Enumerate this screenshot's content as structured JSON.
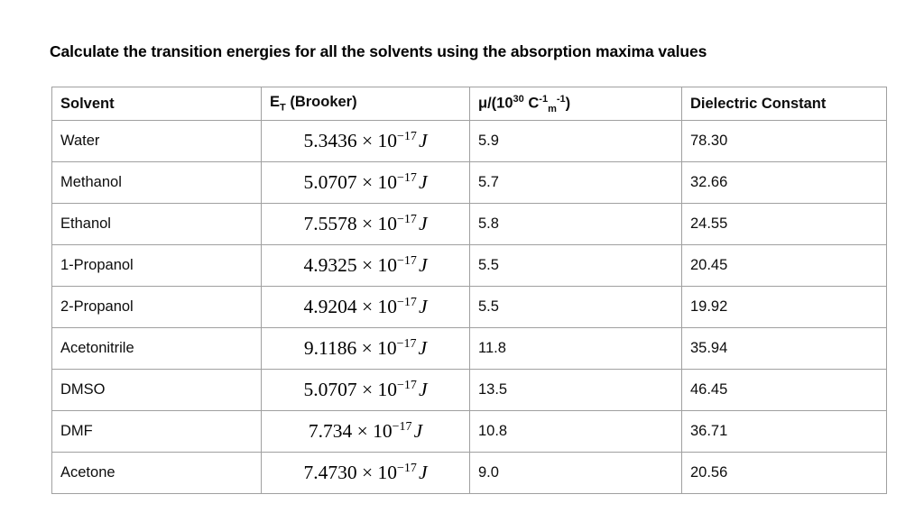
{
  "document": {
    "heading": "Calculate the transition energies for all the solvents using the absorption maxima values"
  },
  "colors": {
    "background": "#ffffff",
    "text": "#000000",
    "table_border": "#a0a0a0"
  },
  "table": {
    "headers": {
      "solvent": "Solvent",
      "et": {
        "base": "E",
        "sub": "T",
        "rest": " (Brooker)"
      },
      "mu": {
        "p1": "μ/(10",
        "sup1": "30",
        "p2": " C",
        "sup2": "-1",
        "sub": "m",
        "sup3": "-1",
        "p3": ")"
      },
      "dielectric": "Dielectric Constant"
    },
    "math": {
      "times_ten": " × 10"
    },
    "rows": [
      {
        "solvent": "Water",
        "et_mantissa": "5.3436",
        "et_exponent": "−17",
        "et_unit": "J",
        "mu": "5.9",
        "dielectric": "78.30"
      },
      {
        "solvent": "Methanol",
        "et_mantissa": "5.0707",
        "et_exponent": "−17",
        "et_unit": "J",
        "mu": "5.7",
        "dielectric": "32.66"
      },
      {
        "solvent": "Ethanol",
        "et_mantissa": "7.5578",
        "et_exponent": "−17",
        "et_unit": "J",
        "mu": "5.8",
        "dielectric": "24.55"
      },
      {
        "solvent": "1-Propanol",
        "et_mantissa": "4.9325",
        "et_exponent": "−17",
        "et_unit": "J",
        "mu": "5.5",
        "dielectric": "20.45"
      },
      {
        "solvent": "2-Propanol",
        "et_mantissa": "4.9204",
        "et_exponent": "−17",
        "et_unit": "J",
        "mu": "5.5",
        "dielectric": "19.92"
      },
      {
        "solvent": "Acetonitrile",
        "et_mantissa": "9.1186",
        "et_exponent": "−17",
        "et_unit": "J",
        "mu": "11.8",
        "dielectric": "35.94"
      },
      {
        "solvent": "DMSO",
        "et_mantissa": "5.0707",
        "et_exponent": "−17",
        "et_unit": "J",
        "mu": "13.5",
        "dielectric": "46.45"
      },
      {
        "solvent": "DMF",
        "et_mantissa": "7.734",
        "et_exponent": "−17",
        "et_unit": "J",
        "mu": "10.8",
        "dielectric": "36.71"
      },
      {
        "solvent": "Acetone",
        "et_mantissa": "7.4730",
        "et_exponent": "−17",
        "et_unit": "J",
        "mu": "9.0",
        "dielectric": "20.56"
      }
    ]
  }
}
